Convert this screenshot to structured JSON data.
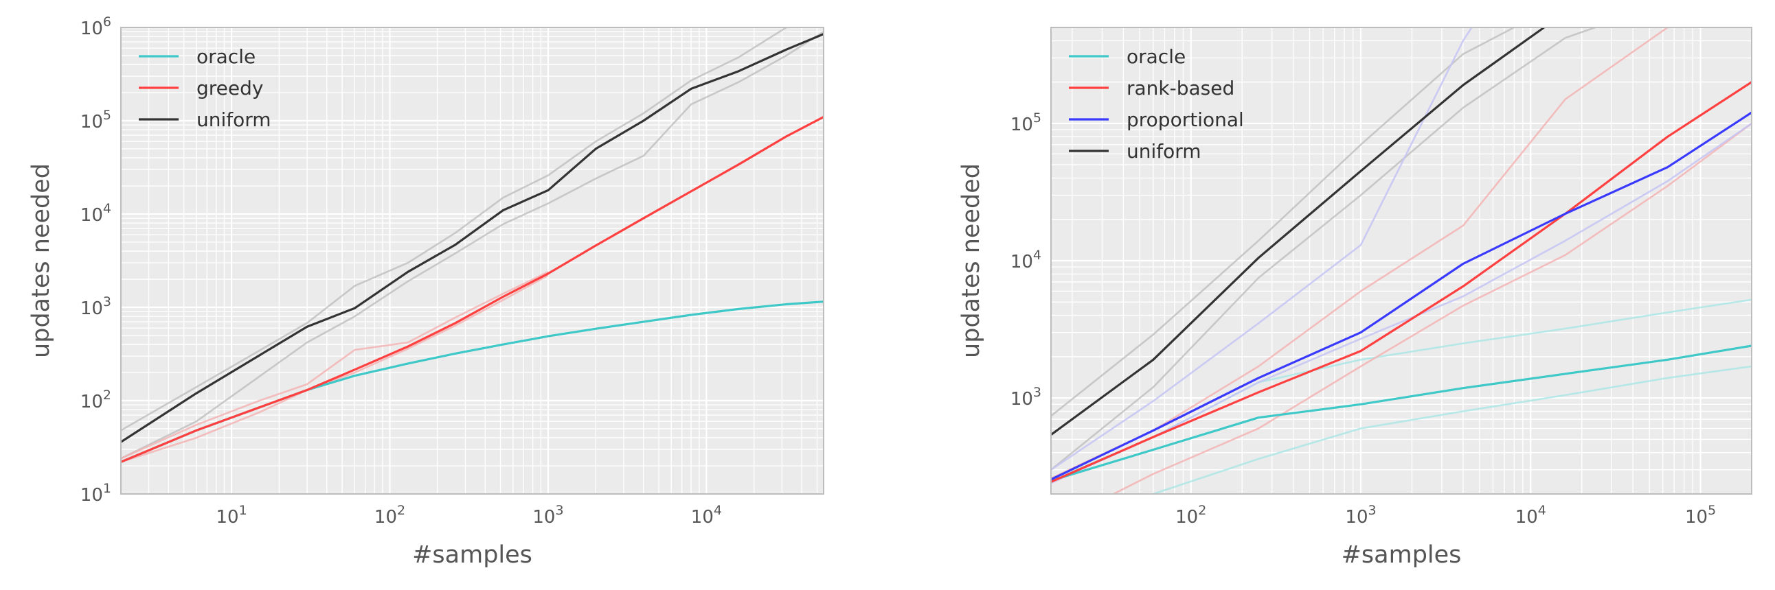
{
  "chart_data": [
    {
      "type": "line",
      "xlabel": "#samples",
      "ylabel": "updates needed",
      "x_scale": "log",
      "y_scale": "log",
      "xlim": [
        2,
        55000
      ],
      "ylim": [
        10,
        1000000
      ],
      "x_ticks": [
        {
          "value": 10,
          "base": "10",
          "exp": "1"
        },
        {
          "value": 100,
          "base": "10",
          "exp": "2"
        },
        {
          "value": 1000,
          "base": "10",
          "exp": "3"
        },
        {
          "value": 10000,
          "base": "10",
          "exp": "4"
        }
      ],
      "y_ticks": [
        {
          "value": 10,
          "base": "10",
          "exp": "1"
        },
        {
          "value": 100,
          "base": "10",
          "exp": "2"
        },
        {
          "value": 1000,
          "base": "10",
          "exp": "3"
        },
        {
          "value": 10000,
          "base": "10",
          "exp": "4"
        },
        {
          "value": 100000,
          "base": "10",
          "exp": "5"
        },
        {
          "value": 1000000,
          "base": "10",
          "exp": "6"
        }
      ],
      "grid": true,
      "legend_position": "top-left",
      "series": [
        {
          "name": "oracle",
          "color": "#3ec8c8",
          "opacity": 1.0,
          "legend": true,
          "x": [
            2,
            6,
            30,
            60,
            130,
            260,
            520,
            1000,
            2000,
            4000,
            8000,
            16000,
            32000,
            55000
          ],
          "y": [
            22,
            48,
            130,
            185,
            250,
            320,
            400,
            490,
            590,
            700,
            830,
            960,
            1080,
            1150
          ]
        },
        {
          "name": "greedy",
          "color": "#ff4040",
          "opacity": 1.0,
          "legend": true,
          "x": [
            2,
            6,
            30,
            60,
            130,
            260,
            520,
            1000,
            2000,
            4000,
            8000,
            16000,
            32000,
            55000
          ],
          "y": [
            22,
            48,
            130,
            215,
            380,
            680,
            1300,
            2300,
            4600,
            9000,
            17500,
            34000,
            68000,
            110000
          ]
        },
        {
          "name": "uniform",
          "color": "#333333",
          "opacity": 1.0,
          "legend": true,
          "x": [
            2,
            6,
            30,
            60,
            130,
            260,
            520,
            1000,
            2000,
            4000,
            8000,
            16000,
            32000,
            55000
          ],
          "y": [
            36,
            120,
            620,
            980,
            2400,
            4700,
            11000,
            18000,
            50000,
            100000,
            220000,
            340000,
            580000,
            850000
          ]
        },
        {
          "color": "#bbbbbb",
          "opacity": 0.75,
          "legend": false,
          "x": [
            2,
            6,
            30,
            60,
            130,
            260,
            520,
            1000,
            2000,
            4000,
            8000,
            16000,
            32000,
            55000
          ],
          "y": [
            48,
            140,
            680,
            1700,
            3000,
            6300,
            15000,
            26000,
            60000,
            120000,
            270000,
            480000,
            1000000,
            1500000
          ]
        },
        {
          "color": "#bbbbbb",
          "opacity": 0.75,
          "legend": false,
          "x": [
            2,
            6,
            30,
            60,
            130,
            260,
            520,
            1000,
            2000,
            4000,
            8000,
            16000,
            32000,
            55000
          ],
          "y": [
            24,
            60,
            420,
            800,
            1900,
            3800,
            7800,
            13000,
            24000,
            42000,
            150000,
            260000,
            500000,
            900000
          ]
        },
        {
          "color": "#f5b0b0",
          "opacity": 0.8,
          "legend": false,
          "x": [
            2,
            6,
            15,
            30,
            60,
            130,
            260,
            520,
            1000
          ],
          "y": [
            24,
            55,
            100,
            150,
            350,
            420,
            780,
            1400,
            2400
          ]
        },
        {
          "color": "#f5b0b0",
          "opacity": 0.8,
          "legend": false,
          "x": [
            2,
            6,
            15,
            30,
            60,
            130,
            260,
            520,
            1000
          ],
          "y": [
            22,
            40,
            75,
            130,
            200,
            360,
            640,
            1200,
            2200
          ]
        }
      ]
    },
    {
      "type": "line",
      "xlabel": "#samples",
      "ylabel": "updates needed",
      "x_scale": "log",
      "y_scale": "log",
      "xlim": [
        15,
        200000
      ],
      "ylim": [
        200,
        500000
      ],
      "x_ticks": [
        {
          "value": 100,
          "base": "10",
          "exp": "2"
        },
        {
          "value": 1000,
          "base": "10",
          "exp": "3"
        },
        {
          "value": 10000,
          "base": "10",
          "exp": "4"
        },
        {
          "value": 100000,
          "base": "10",
          "exp": "5"
        }
      ],
      "y_ticks": [
        {
          "value": 1000,
          "base": "10",
          "exp": "3"
        },
        {
          "value": 10000,
          "base": "10",
          "exp": "4"
        },
        {
          "value": 100000,
          "base": "10",
          "exp": "5"
        }
      ],
      "grid": true,
      "legend_position": "top-left",
      "series": [
        {
          "name": "oracle",
          "color": "#3ec8c8",
          "opacity": 1.0,
          "legend": true,
          "x": [
            15,
            60,
            250,
            1000,
            4000,
            16000,
            64000,
            200000
          ],
          "y": [
            250,
            420,
            720,
            900,
            1180,
            1500,
            1900,
            2400
          ]
        },
        {
          "name": "rank-based",
          "color": "#ff4040",
          "opacity": 1.0,
          "legend": true,
          "x": [
            15,
            60,
            250,
            1000,
            4000,
            16000,
            64000,
            200000
          ],
          "y": [
            245,
            520,
            1100,
            2200,
            6500,
            22000,
            80000,
            200000
          ]
        },
        {
          "name": "proportional",
          "color": "#3a3aff",
          "opacity": 1.0,
          "legend": true,
          "x": [
            15,
            60,
            250,
            1000,
            4000,
            16000,
            64000,
            200000
          ],
          "y": [
            255,
            580,
            1400,
            3000,
            9500,
            22000,
            48000,
            120000
          ]
        },
        {
          "name": "uniform",
          "color": "#333333",
          "opacity": 1.0,
          "legend": true,
          "x": [
            15,
            60,
            250,
            1000,
            4000,
            12000
          ],
          "y": [
            540,
            1900,
            10500,
            45000,
            190000,
            500000
          ]
        },
        {
          "color": "#bbbbbb",
          "opacity": 0.75,
          "legend": false,
          "x": [
            15,
            60,
            250,
            1000,
            4000,
            8000
          ],
          "y": [
            740,
            2900,
            14000,
            70000,
            320000,
            500000
          ]
        },
        {
          "color": "#bbbbbb",
          "opacity": 0.75,
          "legend": false,
          "x": [
            15,
            60,
            250,
            1000,
            4000,
            16000,
            24000
          ],
          "y": [
            300,
            1200,
            7500,
            30000,
            130000,
            420000,
            500000
          ]
        },
        {
          "color": "#a8e6e6",
          "opacity": 0.8,
          "legend": false,
          "x": [
            15,
            60,
            250,
            1000,
            4000,
            16000,
            64000,
            200000
          ],
          "y": [
            250,
            520,
            1300,
            1900,
            2500,
            3200,
            4200,
            5200
          ]
        },
        {
          "color": "#a8e6e6",
          "opacity": 0.8,
          "legend": false,
          "x": [
            40,
            60,
            250,
            1000,
            4000,
            16000,
            64000,
            200000
          ],
          "y": [
            150,
            200,
            360,
            600,
            800,
            1050,
            1400,
            1700
          ]
        },
        {
          "color": "#f5b0b0",
          "opacity": 0.8,
          "legend": false,
          "x": [
            15,
            60,
            250,
            1000,
            4000,
            16000,
            64000
          ],
          "y": [
            260,
            580,
            1700,
            6000,
            18000,
            150000,
            500000
          ]
        },
        {
          "color": "#f5b0b0",
          "opacity": 0.8,
          "legend": false,
          "x": [
            35,
            60,
            250,
            1000,
            4000,
            16000,
            64000,
            200000
          ],
          "y": [
            200,
            280,
            600,
            1700,
            4700,
            11000,
            35000,
            100000
          ]
        },
        {
          "color": "#c4c4f5",
          "opacity": 0.85,
          "legend": false,
          "x": [
            15,
            60,
            250,
            1000,
            4000,
            4500
          ],
          "y": [
            300,
            950,
            3500,
            13000,
            400000,
            500000
          ]
        },
        {
          "color": "#c4c4f5",
          "opacity": 0.85,
          "legend": false,
          "x": [
            15,
            60,
            250,
            1000,
            4000,
            16000,
            64000,
            200000
          ],
          "y": [
            240,
            520,
            1300,
            2700,
            5500,
            14000,
            38000,
            100000
          ]
        }
      ]
    }
  ]
}
